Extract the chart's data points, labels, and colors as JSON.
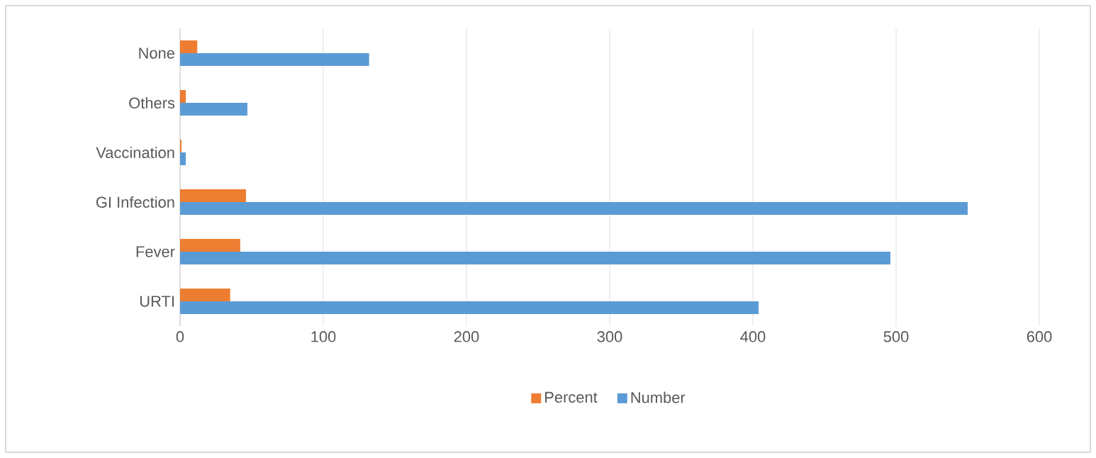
{
  "chart_data": {
    "type": "bar",
    "orientation": "horizontal",
    "categories": [
      "None",
      "Others",
      "Vaccination",
      "GI Infection",
      "Fever",
      "URTI"
    ],
    "series": [
      {
        "name": "Percent",
        "color": "#ed7d31",
        "values": [
          12,
          4,
          1,
          46,
          42,
          35
        ]
      },
      {
        "name": "Number",
        "color": "#5b9bd5",
        "values": [
          132,
          47,
          4,
          550,
          496,
          404
        ]
      }
    ],
    "xlim": [
      0,
      600
    ],
    "xticks": [
      0,
      100,
      200,
      300,
      400,
      500,
      600
    ],
    "grid": "x",
    "legend": "bottom"
  }
}
